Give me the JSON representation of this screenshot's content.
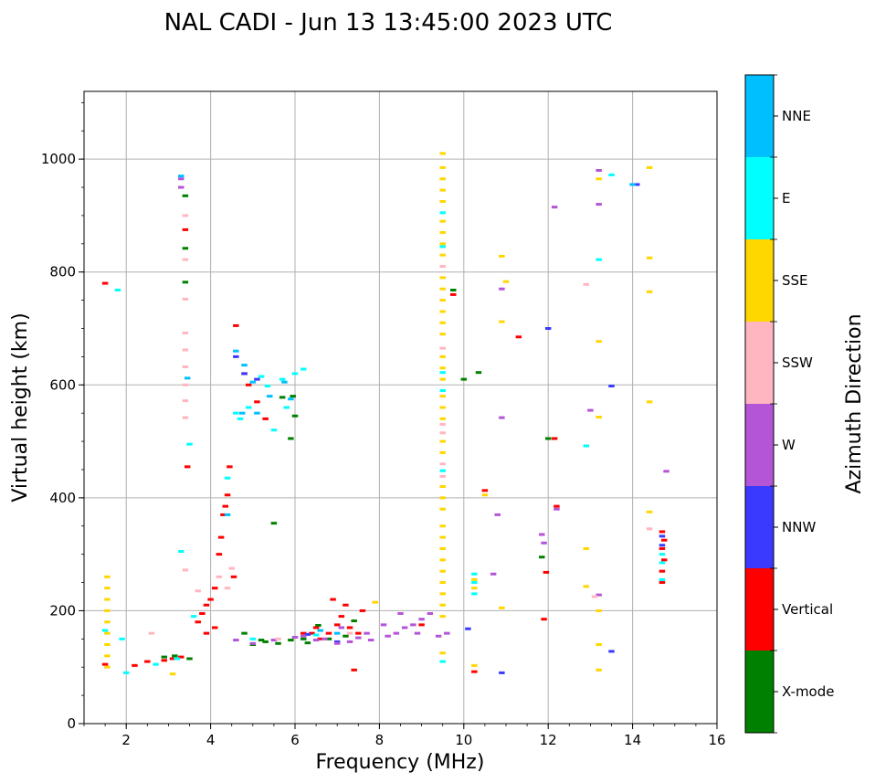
{
  "chart_data": {
    "type": "scatter",
    "title": "NAL CADI - Jun 13 13:45:00 2023 UTC",
    "xlabel": "Frequency (MHz)",
    "ylabel": "Virtual height (km)",
    "xlim": [
      1,
      16
    ],
    "ylim": [
      0,
      1120
    ],
    "xticks": [
      2,
      4,
      6,
      8,
      10,
      12,
      14,
      16
    ],
    "yticks": [
      0,
      200,
      400,
      600,
      800,
      1000
    ],
    "grid": true,
    "colorbar": {
      "title": "Azimuth Direction",
      "categories": [
        "X-mode",
        "Vertical",
        "NNW",
        "W",
        "SSW",
        "SSE",
        "E",
        "NNE"
      ],
      "colors": [
        "#008000",
        "#ff0000",
        "#3a3aff",
        "#b455d8",
        "#ffb6c1",
        "#ffd700",
        "#00ffff",
        "#00bfff"
      ]
    },
    "series": [
      {
        "name": "X-mode",
        "points": [
          [
            5.3,
            145
          ],
          [
            5.6,
            142
          ],
          [
            5.9,
            148
          ],
          [
            6.2,
            150
          ],
          [
            5.0,
            140
          ],
          [
            3.5,
            115
          ],
          [
            3.4,
            935
          ],
          [
            3.4,
            842
          ],
          [
            3.4,
            782
          ],
          [
            5.5,
            355
          ],
          [
            5.9,
            505
          ],
          [
            6.0,
            545
          ],
          [
            9.75,
            768
          ],
          [
            10.35,
            622
          ],
          [
            10.0,
            610
          ],
          [
            12.0,
            505
          ],
          [
            11.85,
            295
          ],
          [
            5.2,
            148
          ],
          [
            6.3,
            143
          ],
          [
            6.8,
            150
          ],
          [
            7.2,
            155
          ],
          [
            4.8,
            160
          ],
          [
            6.55,
            174
          ],
          [
            7.4,
            182
          ],
          [
            5.7,
            578
          ],
          [
            5.95,
            580
          ],
          [
            3.15,
            120
          ],
          [
            2.9,
            118
          ]
        ]
      },
      {
        "name": "Vertical",
        "points": [
          [
            1.5,
            780
          ],
          [
            1.5,
            105
          ],
          [
            2.2,
            103
          ],
          [
            2.5,
            110
          ],
          [
            2.9,
            112
          ],
          [
            3.1,
            115
          ],
          [
            3.3,
            118
          ],
          [
            3.4,
            875
          ],
          [
            3.45,
            455
          ],
          [
            3.7,
            180
          ],
          [
            3.8,
            195
          ],
          [
            3.9,
            210
          ],
          [
            4.0,
            220
          ],
          [
            4.1,
            240
          ],
          [
            4.2,
            300
          ],
          [
            4.25,
            330
          ],
          [
            4.3,
            370
          ],
          [
            4.35,
            385
          ],
          [
            4.4,
            405
          ],
          [
            4.45,
            455
          ],
          [
            4.1,
            170
          ],
          [
            3.9,
            160
          ],
          [
            4.55,
            260
          ],
          [
            4.6,
            705
          ],
          [
            4.8,
            620
          ],
          [
            4.9,
            600
          ],
          [
            5.1,
            570
          ],
          [
            5.3,
            540
          ],
          [
            6.4,
            160
          ],
          [
            6.5,
            170
          ],
          [
            6.6,
            150
          ],
          [
            6.8,
            160
          ],
          [
            7.0,
            175
          ],
          [
            7.1,
            190
          ],
          [
            7.3,
            170
          ],
          [
            7.5,
            160
          ],
          [
            7.6,
            200
          ],
          [
            7.2,
            210
          ],
          [
            7.4,
            95
          ],
          [
            9.0,
            175
          ],
          [
            9.75,
            760
          ],
          [
            10.25,
            92
          ],
          [
            10.5,
            413
          ],
          [
            11.3,
            685
          ],
          [
            11.9,
            185
          ],
          [
            11.95,
            268
          ],
          [
            12.15,
            505
          ],
          [
            12.2,
            385
          ],
          [
            14.7,
            250
          ],
          [
            14.7,
            270
          ],
          [
            14.75,
            290
          ],
          [
            14.7,
            310
          ],
          [
            14.75,
            325
          ],
          [
            14.7,
            340
          ],
          [
            6.2,
            160
          ],
          [
            6.9,
            220
          ]
        ]
      },
      {
        "name": "NNW",
        "points": [
          [
            4.6,
            650
          ],
          [
            4.8,
            620
          ],
          [
            10.1,
            168
          ],
          [
            10.9,
            90
          ],
          [
            12.0,
            700
          ],
          [
            13.5,
            598
          ],
          [
            13.5,
            128
          ],
          [
            14.1,
            955
          ],
          [
            6.3,
            158
          ],
          [
            7.0,
            145
          ],
          [
            5.1,
            610
          ],
          [
            14.7,
            332
          ],
          [
            14.7,
            316
          ]
        ]
      },
      {
        "name": "W",
        "points": [
          [
            3.3,
            965
          ],
          [
            3.3,
            950
          ],
          [
            4.6,
            148
          ],
          [
            5.0,
            142
          ],
          [
            5.5,
            148
          ],
          [
            6.0,
            153
          ],
          [
            6.2,
            155
          ],
          [
            6.5,
            148
          ],
          [
            7.0,
            142
          ],
          [
            7.3,
            145
          ],
          [
            7.5,
            152
          ],
          [
            7.8,
            148
          ],
          [
            8.2,
            155
          ],
          [
            8.4,
            160
          ],
          [
            8.6,
            170
          ],
          [
            8.8,
            175
          ],
          [
            9.0,
            185
          ],
          [
            9.2,
            195
          ],
          [
            8.1,
            175
          ],
          [
            8.5,
            195
          ],
          [
            9.4,
            155
          ],
          [
            9.6,
            160
          ],
          [
            10.8,
            370
          ],
          [
            10.7,
            265
          ],
          [
            10.9,
            542
          ],
          [
            10.9,
            770
          ],
          [
            11.9,
            320
          ],
          [
            11.85,
            335
          ],
          [
            12.15,
            915
          ],
          [
            12.2,
            380
          ],
          [
            13.0,
            555
          ],
          [
            13.2,
            920
          ],
          [
            13.2,
            228
          ],
          [
            13.2,
            980
          ],
          [
            14.8,
            447
          ],
          [
            6.7,
            150
          ],
          [
            7.1,
            170
          ],
          [
            7.7,
            160
          ],
          [
            8.9,
            160
          ]
        ]
      },
      {
        "name": "SSW",
        "points": [
          [
            3.4,
            900
          ],
          [
            3.4,
            822
          ],
          [
            3.4,
            752
          ],
          [
            3.4,
            692
          ],
          [
            3.4,
            662
          ],
          [
            3.4,
            632
          ],
          [
            3.4,
            600
          ],
          [
            3.4,
            572
          ],
          [
            3.4,
            542
          ],
          [
            3.4,
            272
          ],
          [
            3.7,
            235
          ],
          [
            4.4,
            240
          ],
          [
            4.5,
            275
          ],
          [
            4.2,
            260
          ],
          [
            9.5,
            530
          ],
          [
            9.5,
            515
          ],
          [
            9.5,
            460
          ],
          [
            9.5,
            438
          ],
          [
            9.5,
            665
          ],
          [
            9.5,
            810
          ],
          [
            12.9,
            778
          ],
          [
            14.4,
            345
          ],
          [
            13.1,
            225
          ],
          [
            2.6,
            160
          ],
          [
            7.3,
            160
          ],
          [
            5.6,
            150
          ]
        ]
      },
      {
        "name": "SSE",
        "points": [
          [
            1.55,
            260
          ],
          [
            1.55,
            240
          ],
          [
            1.55,
            220
          ],
          [
            1.55,
            200
          ],
          [
            1.55,
            180
          ],
          [
            1.55,
            160
          ],
          [
            1.55,
            140
          ],
          [
            1.55,
            120
          ],
          [
            1.55,
            100
          ],
          [
            9.5,
            1010
          ],
          [
            9.5,
            985
          ],
          [
            9.5,
            965
          ],
          [
            9.5,
            945
          ],
          [
            9.5,
            925
          ],
          [
            9.5,
            890
          ],
          [
            9.5,
            870
          ],
          [
            9.5,
            850
          ],
          [
            9.5,
            830
          ],
          [
            9.5,
            790
          ],
          [
            9.5,
            770
          ],
          [
            9.5,
            750
          ],
          [
            9.5,
            730
          ],
          [
            9.5,
            710
          ],
          [
            9.5,
            690
          ],
          [
            9.5,
            650
          ],
          [
            9.5,
            630
          ],
          [
            9.5,
            610
          ],
          [
            9.5,
            580
          ],
          [
            9.5,
            560
          ],
          [
            9.5,
            540
          ],
          [
            9.5,
            500
          ],
          [
            9.5,
            480
          ],
          [
            9.5,
            420
          ],
          [
            9.5,
            400
          ],
          [
            9.5,
            380
          ],
          [
            9.5,
            350
          ],
          [
            9.5,
            330
          ],
          [
            9.5,
            310
          ],
          [
            9.5,
            290
          ],
          [
            9.5,
            270
          ],
          [
            9.5,
            250
          ],
          [
            9.5,
            230
          ],
          [
            9.5,
            210
          ],
          [
            9.5,
            190
          ],
          [
            9.5,
            125
          ],
          [
            10.25,
            103
          ],
          [
            10.25,
            240
          ],
          [
            10.25,
            255
          ],
          [
            10.5,
            405
          ],
          [
            10.9,
            828
          ],
          [
            10.9,
            712
          ],
          [
            10.9,
            205
          ],
          [
            11.0,
            783
          ],
          [
            12.9,
            243
          ],
          [
            12.9,
            310
          ],
          [
            13.2,
            965
          ],
          [
            13.2,
            677
          ],
          [
            13.2,
            543
          ],
          [
            13.2,
            200
          ],
          [
            13.2,
            140
          ],
          [
            13.2,
            95
          ],
          [
            14.4,
            985
          ],
          [
            14.4,
            825
          ],
          [
            14.4,
            765
          ],
          [
            14.4,
            570
          ],
          [
            14.4,
            375
          ],
          [
            3.1,
            88
          ],
          [
            7.9,
            215
          ]
        ]
      },
      {
        "name": "E",
        "points": [
          [
            1.5,
            165
          ],
          [
            1.8,
            768
          ],
          [
            1.9,
            150
          ],
          [
            2.0,
            90
          ],
          [
            3.3,
            305
          ],
          [
            3.5,
            495
          ],
          [
            3.6,
            190
          ],
          [
            4.4,
            435
          ],
          [
            4.6,
            550
          ],
          [
            4.7,
            540
          ],
          [
            4.9,
            560
          ],
          [
            5.2,
            615
          ],
          [
            5.35,
            598
          ],
          [
            5.5,
            520
          ],
          [
            5.7,
            610
          ],
          [
            5.8,
            560
          ],
          [
            6.0,
            620
          ],
          [
            6.2,
            628
          ],
          [
            9.5,
            905
          ],
          [
            9.5,
            845
          ],
          [
            9.5,
            622
          ],
          [
            9.5,
            590
          ],
          [
            9.5,
            448
          ],
          [
            9.5,
            110
          ],
          [
            10.25,
            265
          ],
          [
            10.25,
            250
          ],
          [
            10.25,
            230
          ],
          [
            12.9,
            492
          ],
          [
            13.2,
            822
          ],
          [
            13.5,
            972
          ],
          [
            14.7,
            255
          ],
          [
            14.7,
            285
          ],
          [
            14.7,
            300
          ],
          [
            3.2,
            115
          ],
          [
            2.7,
            105
          ],
          [
            5.0,
            150
          ],
          [
            6.5,
            157
          ]
        ]
      },
      {
        "name": "NNE",
        "points": [
          [
            3.3,
            970
          ],
          [
            3.45,
            612
          ],
          [
            4.6,
            660
          ],
          [
            4.8,
            635
          ],
          [
            5.0,
            605
          ],
          [
            5.1,
            550
          ],
          [
            5.4,
            580
          ],
          [
            5.75,
            605
          ],
          [
            5.9,
            575
          ],
          [
            4.75,
            550
          ],
          [
            4.4,
            370
          ],
          [
            6.6,
            165
          ],
          [
            7.0,
            160
          ],
          [
            14.0,
            955
          ]
        ]
      }
    ]
  }
}
